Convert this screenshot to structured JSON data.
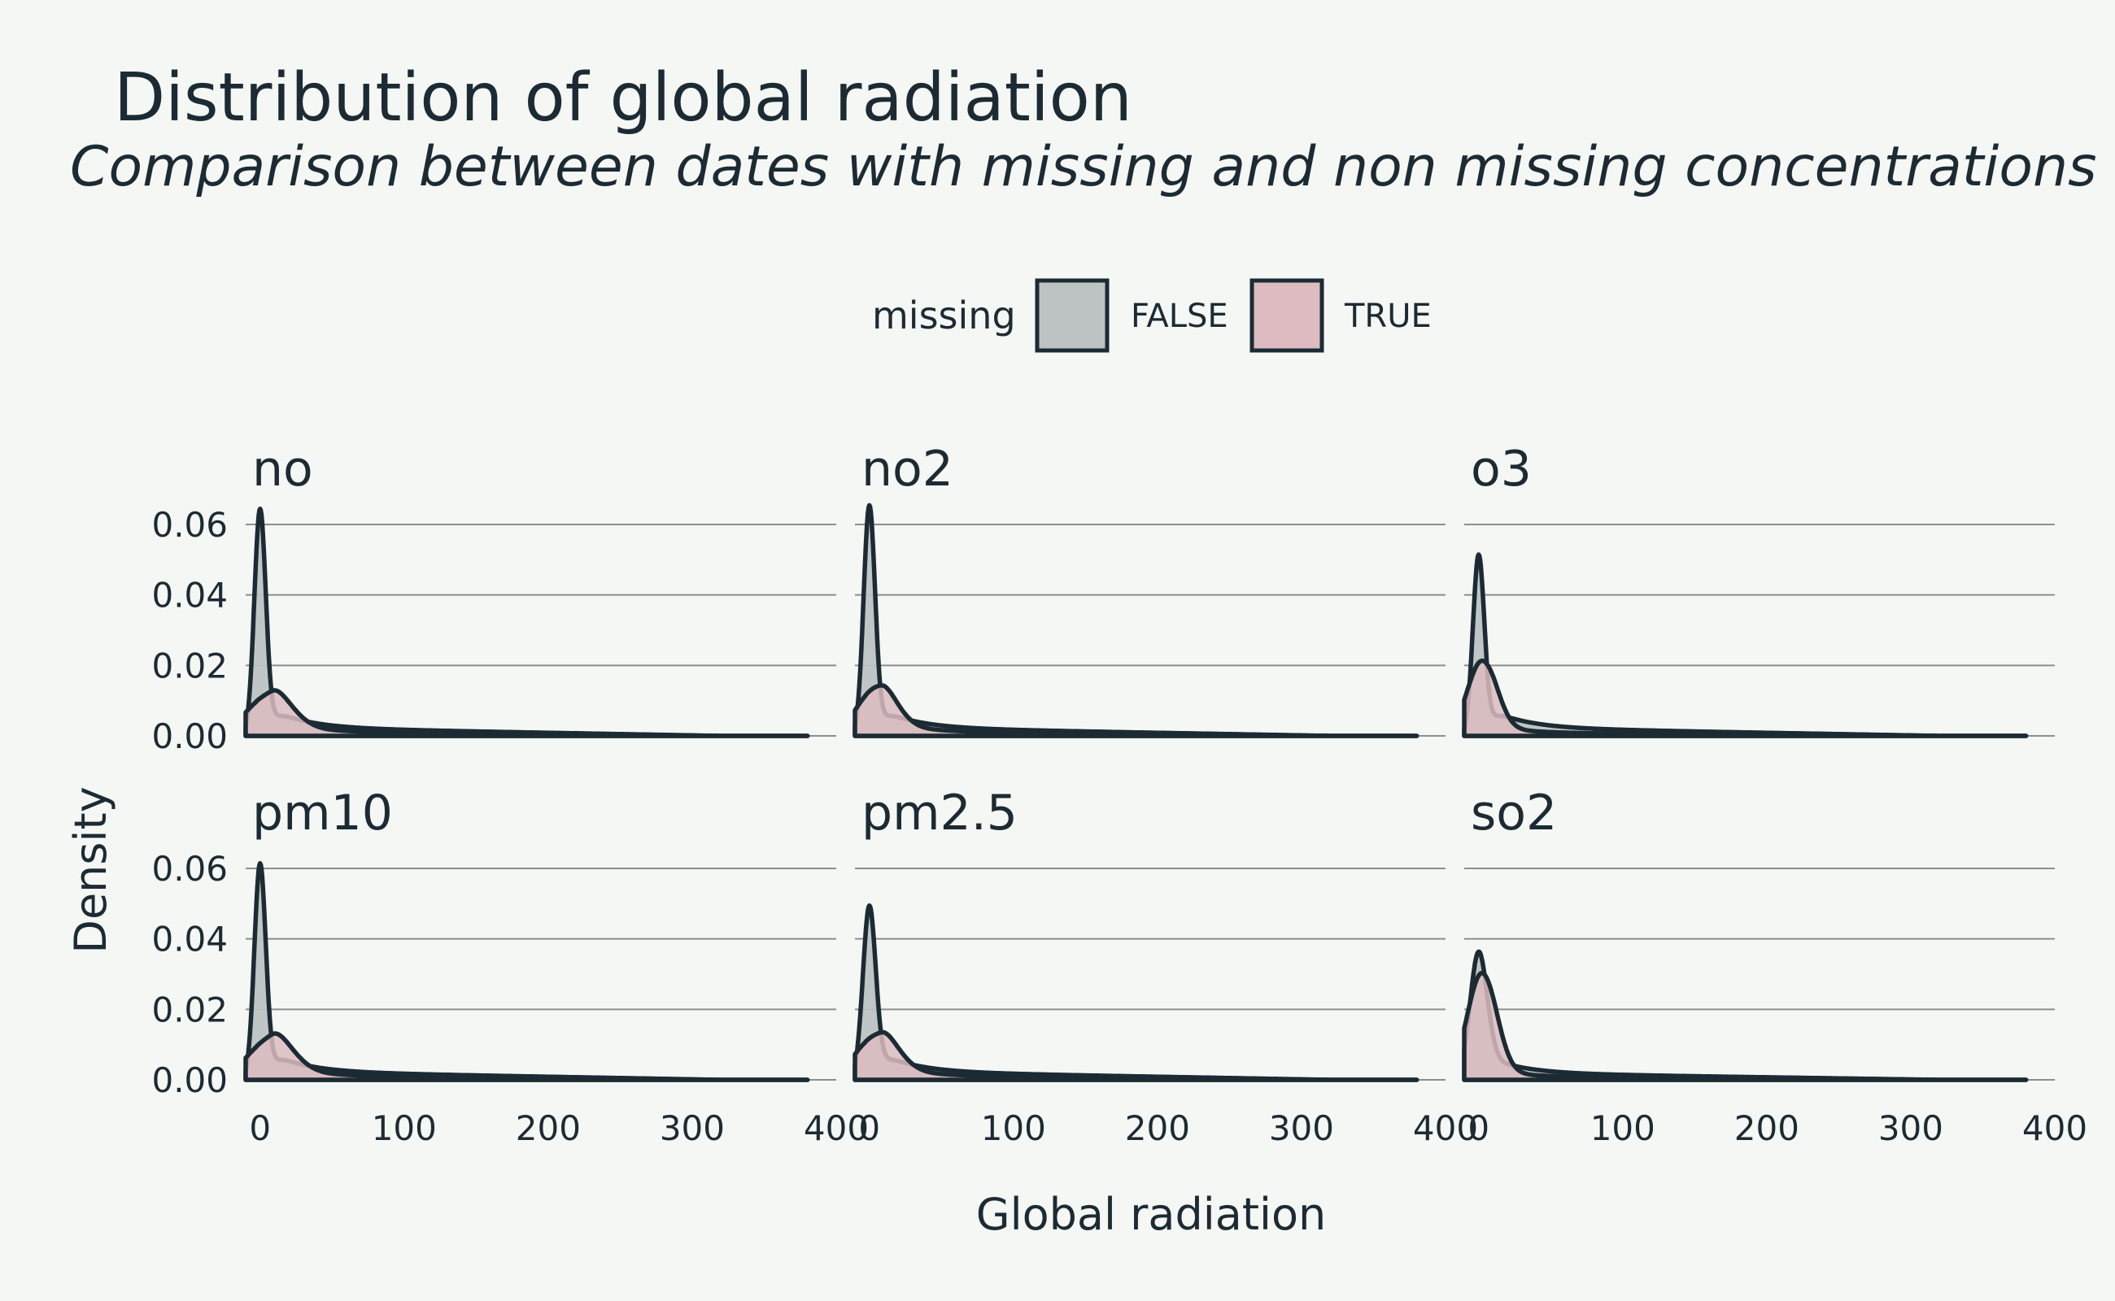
{
  "chart_data": {
    "type": "area",
    "title": "Distribution of global radiation",
    "subtitle": "Comparison between dates with missing and non missing concentrations",
    "xlabel": "Global radiation",
    "ylabel": "Density",
    "xlim": [
      -10,
      400
    ],
    "ylim": [
      0,
      0.065
    ],
    "x_ticks": [
      0,
      100,
      200,
      300,
      400
    ],
    "x_tick_labels": [
      "0",
      "100",
      "200",
      "300",
      "400"
    ],
    "y_ticks": [
      0.0,
      0.02,
      0.04,
      0.06
    ],
    "y_tick_labels": [
      "0.00",
      "0.02",
      "0.04",
      "0.06"
    ],
    "legend": {
      "title": "missing",
      "position": "top",
      "entries": [
        {
          "label": "FALSE",
          "color": "#bcc3c2"
        },
        {
          "label": "TRUE",
          "color": "#dcbcc0"
        }
      ]
    },
    "facets": [
      {
        "name": "no",
        "series": [
          {
            "name": "FALSE",
            "peak_x": 0,
            "peak_density": 0.064,
            "peak_width": 4,
            "tail_level": 0.0022
          },
          {
            "name": "TRUE",
            "peak_x": 5,
            "peak_density": 0.011,
            "peak_width": 15,
            "tail_level": 0.0012
          }
        ]
      },
      {
        "name": "no2",
        "series": [
          {
            "name": "FALSE",
            "peak_x": 0,
            "peak_density": 0.065,
            "peak_width": 4,
            "tail_level": 0.0022
          },
          {
            "name": "TRUE",
            "peak_x": 4,
            "peak_density": 0.013,
            "peak_width": 13,
            "tail_level": 0.0012
          }
        ]
      },
      {
        "name": "o3",
        "series": [
          {
            "name": "FALSE",
            "peak_x": 0,
            "peak_density": 0.051,
            "peak_width": 4,
            "tail_level": 0.0022
          },
          {
            "name": "TRUE",
            "peak_x": 2,
            "peak_density": 0.021,
            "peak_width": 10,
            "tail_level": 0.0008
          }
        ]
      },
      {
        "name": "pm10",
        "series": [
          {
            "name": "FALSE",
            "peak_x": 0,
            "peak_density": 0.061,
            "peak_width": 4,
            "tail_level": 0.0022
          },
          {
            "name": "TRUE",
            "peak_x": 6,
            "peak_density": 0.011,
            "peak_width": 15,
            "tail_level": 0.0012
          }
        ]
      },
      {
        "name": "pm2.5",
        "series": [
          {
            "name": "FALSE",
            "peak_x": 0,
            "peak_density": 0.049,
            "peak_width": 4.5,
            "tail_level": 0.0022
          },
          {
            "name": "TRUE",
            "peak_x": 4,
            "peak_density": 0.012,
            "peak_width": 14,
            "tail_level": 0.0012
          }
        ]
      },
      {
        "name": "so2",
        "series": [
          {
            "name": "FALSE",
            "peak_x": 0,
            "peak_density": 0.036,
            "peak_width": 6,
            "tail_level": 0.0018
          },
          {
            "name": "TRUE",
            "peak_x": 2,
            "peak_density": 0.03,
            "peak_width": 10,
            "tail_level": 0.0008
          }
        ]
      }
    ]
  }
}
